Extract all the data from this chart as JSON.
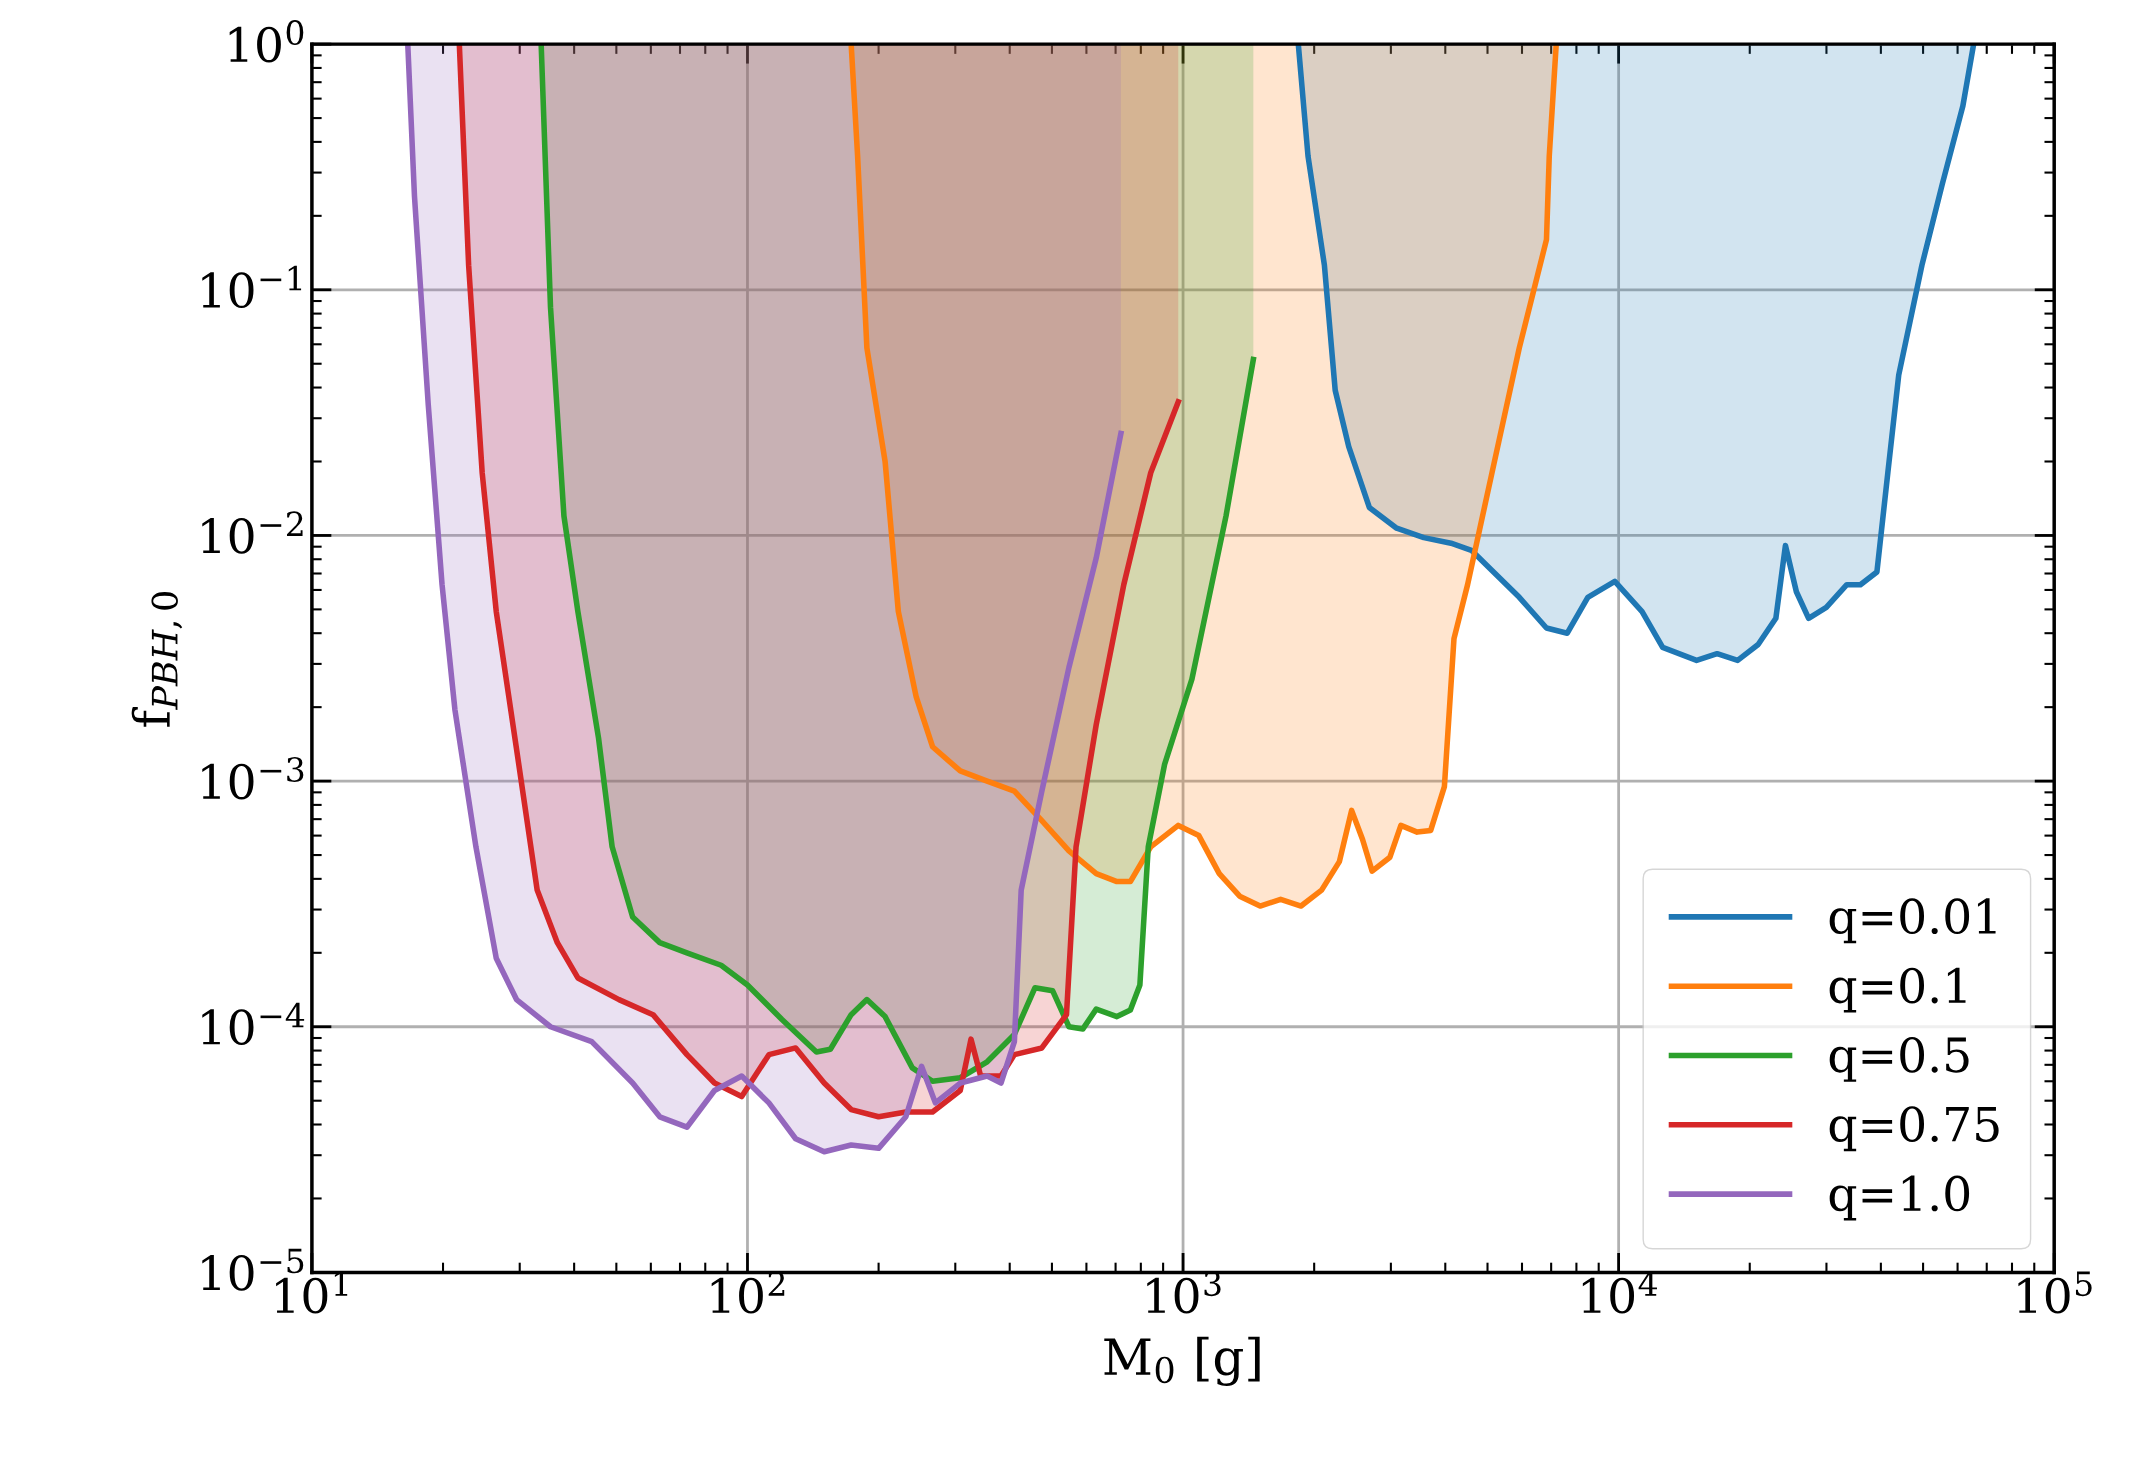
{
  "chart_data": {
    "type": "line",
    "xlabel": "M$_{0}$ [g]",
    "ylabel": "f$_{PBH,0}$",
    "log": "xy",
    "grid": true,
    "legend": "bottom right",
    "xlim": [
      10,
      100000
    ],
    "ylim": [
      1e-05,
      1
    ],
    "xticks": [
      {
        "value": 10,
        "label": "10$^{1}$"
      },
      {
        "value": 100,
        "label": "10$^{2}$"
      },
      {
        "value": 1000,
        "label": "10$^{3}$"
      },
      {
        "value": 10000,
        "label": "10$^{4}$"
      },
      {
        "value": 100000,
        "label": "10$^{5}$"
      }
    ],
    "yticks": [
      {
        "value": 1e-05,
        "label": "10$^{−5}$"
      },
      {
        "value": 0.0001,
        "label": "10$^{−4}$"
      },
      {
        "value": 0.001,
        "label": "10$^{−3}$"
      },
      {
        "value": 0.01,
        "label": "10$^{−2}$"
      },
      {
        "value": 0.1,
        "label": "10$^{−1}$"
      },
      {
        "value": 1,
        "label": "10$^{0}$"
      }
    ],
    "series": [
      {
        "name": "q=0.01",
        "color": "#1f77b4",
        "x": [
          1839,
          1936,
          2111,
          2235,
          2401,
          2677,
          3093,
          3570,
          4122,
          4592,
          5120,
          5915,
          6829,
          7622,
          8497,
          9800,
          11320,
          12620,
          15100,
          16830,
          18760,
          20910,
          22960,
          24150,
          25590,
          27300,
          29980,
          33410,
          35900,
          39170,
          41500,
          43960,
          49700,
          55360,
          61700,
          65320
        ],
        "values": [
          1,
          0.35,
          0.126,
          0.039,
          0.023,
          0.013,
          0.0107,
          0.0098,
          0.0093,
          0.0087,
          0.0072,
          0.0056,
          0.0042,
          0.004,
          0.0056,
          0.0065,
          0.0049,
          0.0035,
          0.0031,
          0.0033,
          0.0031,
          0.0036,
          0.0046,
          0.0091,
          0.0059,
          0.0046,
          0.0051,
          0.0063,
          0.0063,
          0.0071,
          0.018,
          0.045,
          0.126,
          0.27,
          0.56,
          1
        ],
        "lower": [
          1,
          0.35,
          0.126,
          0.039,
          0.023,
          0.013,
          0.0107,
          0.0098,
          0.0093,
          0.0087,
          0.0072,
          0.0056,
          0.0042,
          0.004,
          0.0056,
          0.0065,
          0.0049,
          0.0035,
          0.0031,
          0.0033,
          0.0031,
          0.0036,
          0.0046,
          0.0091,
          0.0059,
          0.0046,
          0.0051,
          0.0063,
          0.0063,
          0.0071,
          0.018,
          0.045,
          0.126,
          0.27,
          0.56,
          1
        ],
        "upper": [
          1,
          1,
          1,
          1,
          1,
          1,
          1,
          1,
          1,
          1,
          1,
          1,
          1,
          1,
          1,
          1,
          1,
          1,
          1,
          1,
          1,
          1,
          1,
          1,
          1,
          1,
          1,
          1,
          1,
          1,
          1,
          1,
          1,
          1,
          1,
          1
        ]
      },
      {
        "name": "q=0.1",
        "color": "#ff7f0e",
        "x": [
          173,
          179,
          188,
          207,
          222,
          244,
          266,
          308,
          355,
          410,
          474,
          547,
          632,
          705,
          757,
          843,
          975,
          1087,
          1211,
          1349,
          1503,
          1675,
          1866,
          2080,
          2285,
          2438,
          2582,
          2717,
          2985,
          3163,
          3447,
          3703,
          3981,
          4188,
          4500,
          5120,
          5915,
          6829,
          6930,
          7190
        ],
        "values": [
          1,
          0.35,
          0.058,
          0.02,
          0.0049,
          0.0022,
          0.00138,
          0.0011,
          0.001,
          0.00091,
          0.00069,
          0.00052,
          0.00042,
          0.00039,
          0.00039,
          0.00054,
          0.00066,
          0.0006,
          0.00042,
          0.00034,
          0.00031,
          0.00033,
          0.00031,
          0.00036,
          0.00047,
          0.00076,
          0.00058,
          0.00043,
          0.00049,
          0.00066,
          0.00062,
          0.00063,
          0.00095,
          0.0038,
          0.0063,
          0.018,
          0.058,
          0.16,
          0.35,
          1
        ],
        "lower": [
          1,
          0.35,
          0.058,
          0.02,
          0.0049,
          0.0022,
          0.00138,
          0.0011,
          0.001,
          0.00091,
          0.00069,
          0.00052,
          0.00042,
          0.00039,
          0.00039,
          0.00054,
          0.00066,
          0.0006,
          0.00042,
          0.00034,
          0.00031,
          0.00033,
          0.00031,
          0.00036,
          0.00047,
          0.00076,
          0.00058,
          0.00043,
          0.00049,
          0.00066,
          0.00062,
          0.00063,
          0.00095,
          0.0038,
          0.0063,
          0.018,
          0.058,
          0.16,
          0.35,
          1
        ],
        "upper": [
          1,
          1,
          1,
          1,
          1,
          1,
          1,
          1,
          1,
          1,
          1,
          1,
          1,
          1,
          1,
          1,
          1,
          1,
          1,
          1,
          1,
          1,
          1,
          1,
          1,
          1,
          1,
          1,
          1,
          1,
          1,
          1,
          1,
          1,
          1,
          1,
          1,
          1,
          1,
          1
        ]
      },
      {
        "name": "q=0.5",
        "color": "#2ca02c",
        "x": [
          33.6,
          35.3,
          37.9,
          40.8,
          45.5,
          48.9,
          54.5,
          62.9,
          72.6,
          87,
          100,
          120,
          144,
          155,
          173,
          188,
          207,
          239,
          266,
          308,
          355,
          410,
          457,
          502,
          547,
          589,
          632,
          705,
          757,
          796,
          832,
          907,
          1048,
          1255,
          1450
        ],
        "values": [
          1,
          0.085,
          0.012,
          0.0049,
          0.0015,
          0.00054,
          0.00028,
          0.00022,
          0.0002,
          0.000178,
          0.000148,
          0.000107,
          7.9e-05,
          8.1e-05,
          0.000112,
          0.000129,
          0.00011,
          6.8e-05,
          6e-05,
          6.2e-05,
          7.2e-05,
          9.3e-05,
          0.000144,
          0.00014,
          0.0001,
          9.8e-05,
          0.000118,
          0.00011,
          0.000117,
          0.000148,
          0.00054,
          0.00117,
          0.0026,
          0.012,
          0.052
        ],
        "lower": [
          1,
          0.085,
          0.012,
          0.0049,
          0.0015,
          0.00054,
          0.00028,
          0.00022,
          0.0002,
          0.000178,
          0.000148,
          0.000107,
          7.9e-05,
          8.1e-05,
          0.000112,
          0.000129,
          0.00011,
          6.8e-05,
          6e-05,
          6.2e-05,
          7.2e-05,
          9.3e-05,
          0.000144,
          0.00014,
          0.0001,
          9.8e-05,
          0.000118,
          0.00011,
          0.000117,
          0.000148,
          0.00054,
          0.00117,
          0.0026,
          0.012,
          0.052
        ],
        "upper": [
          1,
          1,
          1,
          1,
          1,
          1,
          1,
          1,
          1,
          1,
          1,
          1,
          1,
          1,
          1,
          1,
          1,
          1,
          1,
          1,
          1,
          1,
          1,
          1,
          1,
          1,
          1,
          1,
          1,
          1,
          1,
          1,
          1,
          1,
          1
        ]
      },
      {
        "name": "q=0.75",
        "color": "#d62728",
        "x": [
          21.8,
          22.9,
          24.6,
          26.5,
          29.5,
          32.9,
          36.6,
          40.8,
          50.7,
          60.7,
          72.6,
          84,
          97,
          112,
          129,
          150,
          173,
          200,
          231,
          266,
          308,
          326,
          343,
          382,
          410,
          474,
          540,
          568,
          632,
          731,
          843,
          975
        ],
        "values": [
          1,
          0.126,
          0.018,
          0.0049,
          0.00135,
          0.00036,
          0.00022,
          0.000158,
          0.000129,
          0.000112,
          7.7e-05,
          5.9e-05,
          5.2e-05,
          7.7e-05,
          8.2e-05,
          5.9e-05,
          4.6e-05,
          4.3e-05,
          4.5e-05,
          4.5e-05,
          5.5e-05,
          8.9e-05,
          6.3e-05,
          6.3e-05,
          7.7e-05,
          8.2e-05,
          0.000112,
          0.00054,
          0.0017,
          0.0063,
          0.018,
          0.035
        ],
        "lower": [
          1,
          0.126,
          0.018,
          0.0049,
          0.00135,
          0.00036,
          0.00022,
          0.000158,
          0.000129,
          0.000112,
          7.7e-05,
          5.9e-05,
          5.2e-05,
          7.7e-05,
          8.2e-05,
          5.9e-05,
          4.6e-05,
          4.3e-05,
          4.5e-05,
          4.5e-05,
          5.5e-05,
          8.9e-05,
          6.3e-05,
          6.3e-05,
          7.7e-05,
          8.2e-05,
          0.000112,
          0.00054,
          0.0017,
          0.0063,
          0.018,
          0.035
        ],
        "upper": [
          1,
          1,
          1,
          1,
          1,
          1,
          1,
          1,
          1,
          1,
          1,
          1,
          1,
          1,
          1,
          1,
          1,
          1,
          1,
          1,
          1,
          1,
          1,
          1,
          1,
          1,
          1,
          1,
          1,
          1,
          1,
          1
        ]
      },
      {
        "name": "q=1.0",
        "color": "#9467bd",
        "x": [
          16.6,
          17.2,
          18.5,
          19.9,
          21.3,
          23.8,
          26.5,
          29.5,
          35.3,
          43.9,
          54.5,
          62.9,
          72.6,
          84,
          97,
          112,
          129,
          150,
          173,
          200,
          231,
          251,
          270,
          308,
          355,
          382,
          410,
          425,
          474,
          547,
          632,
          720
        ],
        "values": [
          1,
          0.24,
          0.034,
          0.0063,
          0.00195,
          0.00054,
          0.00019,
          0.000129,
          0.0001,
          8.7e-05,
          5.9e-05,
          4.3e-05,
          3.9e-05,
          5.5e-05,
          6.3e-05,
          4.9e-05,
          3.5e-05,
          3.1e-05,
          3.3e-05,
          3.2e-05,
          4.3e-05,
          6.9e-05,
          4.9e-05,
          5.9e-05,
          6.3e-05,
          5.9e-05,
          8.7e-05,
          0.00036,
          0.00091,
          0.0029,
          0.0081,
          0.026
        ],
        "lower": [
          1,
          0.24,
          0.034,
          0.0063,
          0.00195,
          0.00054,
          0.00019,
          0.000129,
          0.0001,
          8.7e-05,
          5.9e-05,
          4.3e-05,
          3.9e-05,
          5.5e-05,
          6.3e-05,
          4.9e-05,
          3.5e-05,
          3.1e-05,
          3.3e-05,
          3.2e-05,
          4.3e-05,
          6.9e-05,
          4.9e-05,
          5.9e-05,
          6.3e-05,
          5.9e-05,
          8.7e-05,
          0.00036,
          0.00091,
          0.0029,
          0.0081,
          0.026
        ],
        "upper": [
          1,
          1,
          1,
          1,
          1,
          1,
          1,
          1,
          1,
          1,
          1,
          1,
          1,
          1,
          1,
          1,
          1,
          1,
          1,
          1,
          1,
          1,
          1,
          1,
          1,
          1,
          1,
          1,
          1,
          1,
          1,
          1
        ]
      }
    ]
  }
}
